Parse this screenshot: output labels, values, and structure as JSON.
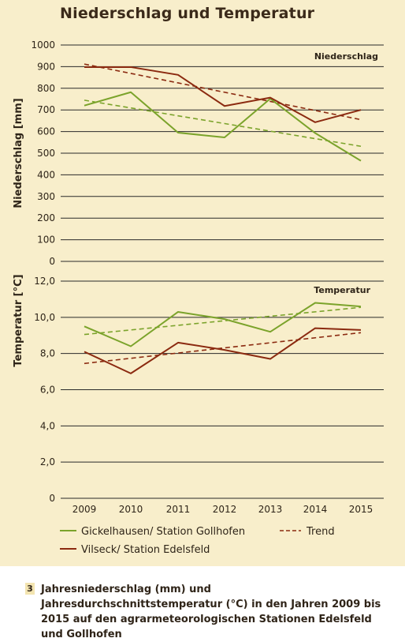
{
  "title": "Niederschlag und Temperatur",
  "colors": {
    "green": "#7ba32b",
    "brown": "#8b2a10",
    "panel": "#f8eecb",
    "axis": "#2a2a2a"
  },
  "chart_data": [
    {
      "type": "line",
      "panel_label": "Niederschlag",
      "ylabel": "Niederschlag [mm]",
      "ylim": [
        0,
        1000
      ],
      "yticks": [
        "0",
        "100",
        "200",
        "300",
        "400",
        "500",
        "600",
        "700",
        "800",
        "900",
        "1000"
      ],
      "x": [
        "2009",
        "2010",
        "2011",
        "2012",
        "2013",
        "2014",
        "2015"
      ],
      "series": [
        {
          "name": "Gickelhausen/ Station Gollhofen",
          "color": "#7ba32b",
          "values": [
            720,
            782,
            595,
            573,
            752,
            593,
            465
          ]
        },
        {
          "name": "Vilseck/ Station Edelsfeld",
          "color": "#8b2a10",
          "values": [
            898,
            898,
            862,
            718,
            757,
            643,
            700
          ]
        }
      ],
      "trends": [
        {
          "color": "#7ba32b",
          "values": [
            745,
            532
          ]
        },
        {
          "color": "#8b2a10",
          "values": [
            912,
            655
          ]
        }
      ]
    },
    {
      "type": "line",
      "panel_label": "Temperatur",
      "ylabel": "Temperatur [°C]",
      "ylim": [
        0,
        12
      ],
      "yticks": [
        "0",
        "2,0",
        "4,0",
        "6,0",
        "8,0",
        "10,0",
        "12,0"
      ],
      "x": [
        "2009",
        "2010",
        "2011",
        "2012",
        "2013",
        "2014",
        "2015"
      ],
      "series": [
        {
          "name": "Gickelhausen/ Station Gollhofen",
          "color": "#7ba32b",
          "values": [
            9.5,
            8.4,
            10.3,
            9.9,
            9.2,
            10.8,
            10.6
          ]
        },
        {
          "name": "Vilseck/ Station Edelsfeld",
          "color": "#8b2a10",
          "values": [
            8.1,
            6.9,
            8.6,
            8.2,
            7.7,
            9.4,
            9.3
          ]
        }
      ],
      "trends": [
        {
          "color": "#7ba32b",
          "values": [
            9.05,
            10.55
          ]
        },
        {
          "color": "#8b2a10",
          "values": [
            7.45,
            9.15
          ]
        }
      ]
    }
  ],
  "legend": {
    "green_label": "Gickelhausen/ Station Gollhofen",
    "brown_label": "Vilseck/ Station Edelsfeld",
    "trend_label": "Trend"
  },
  "caption": {
    "number": "3",
    "text": "Jahresniederschlag (mm) und Jahresdurchschnittstemperatur (°C) in den Jahren 2009 bis 2015 auf den agrarmeteorologischen Stationen Edelsfeld und Gollhofen"
  }
}
